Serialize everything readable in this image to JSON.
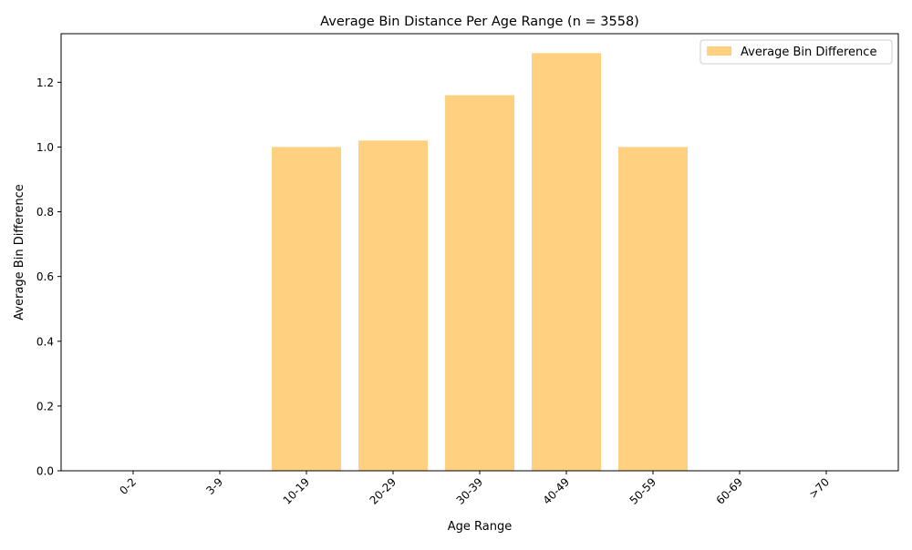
{
  "chart_data": {
    "type": "bar",
    "title": "Average Bin Distance Per Age Range (n = 3558)",
    "xlabel": "Age Range",
    "ylabel": "Average Bin Difference",
    "categories": [
      "0-2",
      "3-9",
      "10-19",
      "20-29",
      "30-39",
      "40-49",
      "50-59",
      "60-69",
      ">70"
    ],
    "series": [
      {
        "name": "Average Bin Difference",
        "values": [
          0,
          0,
          1.0,
          1.02,
          1.16,
          1.29,
          1.0,
          0,
          0
        ],
        "color": "#fed080"
      }
    ],
    "ylim": [
      0,
      1.35
    ],
    "yticks": [
      0.0,
      0.2,
      0.4,
      0.6,
      0.8,
      1.0,
      1.2
    ],
    "ytick_labels": [
      "0.0",
      "0.2",
      "0.4",
      "0.6",
      "0.8",
      "1.0",
      "1.2"
    ],
    "grid": false,
    "legend_position": "top-right"
  }
}
